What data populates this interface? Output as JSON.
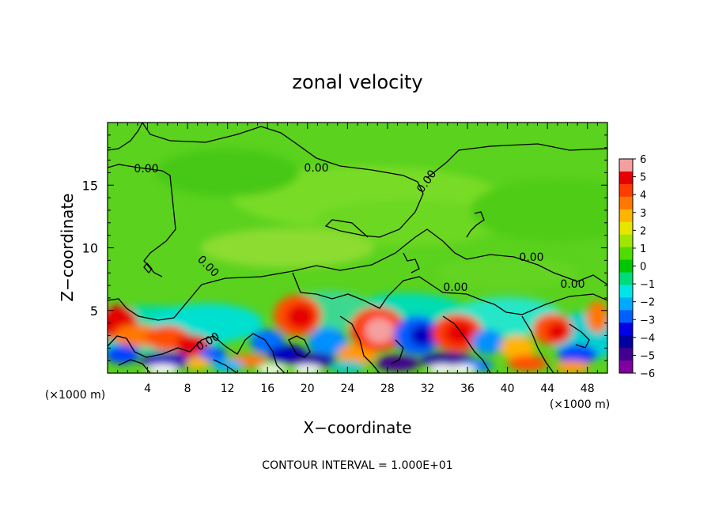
{
  "chart_data": {
    "type": "heatmap",
    "title": "zonal velocity",
    "xlabel": "X−coordinate",
    "ylabel": "Z−coordinate",
    "x_unit": "(×1000 m)",
    "y_unit": "(×1000 m)",
    "xlim": [
      0,
      50
    ],
    "ylim": [
      0,
      20
    ],
    "x_ticks": [
      4,
      8,
      12,
      16,
      20,
      24,
      28,
      32,
      36,
      40,
      44,
      48
    ],
    "y_ticks": [
      5,
      10,
      15
    ],
    "colorbar": {
      "min": -6,
      "max": 6,
      "ticks": [
        "6",
        "5",
        "4",
        "3",
        "2",
        "1",
        "0",
        "−1",
        "−2",
        "−3",
        "−4",
        "−5",
        "−6"
      ],
      "colors": [
        "#f4a0a0",
        "#e60000",
        "#ff3c00",
        "#ff7800",
        "#ffb400",
        "#e6e600",
        "#a0e600",
        "#50dc00",
        "#00c800",
        "#00dc78",
        "#00e6e6",
        "#00aaff",
        "#0060ff",
        "#0000e6",
        "#0000a0",
        "#400090",
        "#8000a0"
      ]
    },
    "contour_labels": [
      "0.00",
      "0.00",
      "0.00",
      "0.00",
      "0.00",
      "0.00",
      "0.00",
      "0.00"
    ],
    "footer": "CONTOUR INTERVAL = 1.000E+01"
  }
}
